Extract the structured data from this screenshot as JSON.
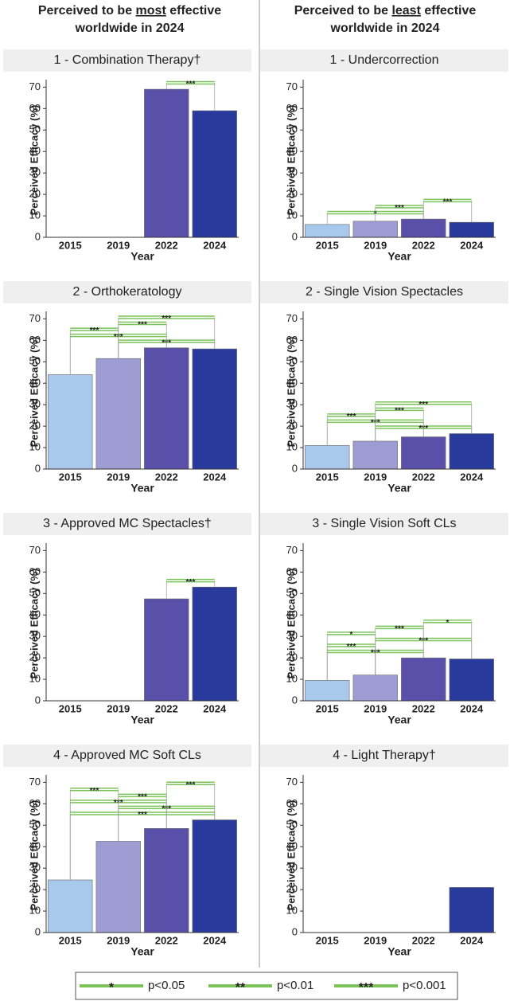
{
  "headers": [
    {
      "before": "Perceived to be ",
      "emphasis": "most",
      "after": " effective",
      "line2": "worldwide in 2024"
    },
    {
      "before": "Perceived to be ",
      "emphasis": "least",
      "after": " effective",
      "line2": "worldwide in 2024"
    }
  ],
  "chart_data": [
    {
      "type": "bar",
      "title": "1 - Combination Therapy†",
      "xlabel": "Year",
      "ylabel": "Perceived Efficacy (%)",
      "categories": [
        "2015",
        "2019",
        "2022",
        "2024"
      ],
      "values": [
        null,
        null,
        69,
        59
      ],
      "colors": [
        "#a9c9ec",
        "#9d9dd3",
        "#5b50a9",
        "#283a9b"
      ],
      "ylim": [
        0,
        72
      ],
      "yticks": [
        0,
        10,
        20,
        30,
        40,
        50,
        60,
        70
      ],
      "significance": [
        {
          "pair": [
            "2022",
            "2024"
          ],
          "label": "***"
        }
      ]
    },
    {
      "type": "bar",
      "title": "1 - Undercorrection",
      "xlabel": "Year",
      "ylabel": "Perceived Efficacy (%)",
      "categories": [
        "2015",
        "2019",
        "2022",
        "2024"
      ],
      "values": [
        6,
        7.5,
        8.5,
        7
      ],
      "colors": [
        "#a9c9ec",
        "#9d9dd3",
        "#5b50a9",
        "#283a9b"
      ],
      "ylim": [
        0,
        72
      ],
      "yticks": [
        0,
        10,
        20,
        30,
        40,
        50,
        60,
        70
      ],
      "significance": [
        {
          "pair": [
            "2015",
            "2022"
          ],
          "label": "*"
        },
        {
          "pair": [
            "2019",
            "2022"
          ],
          "label": "***"
        },
        {
          "pair": [
            "2022",
            "2024"
          ],
          "label": "***"
        }
      ]
    },
    {
      "type": "bar",
      "title": "2 - Orthokeratology",
      "xlabel": "Year",
      "ylabel": "Perceived Efficacy (%)",
      "categories": [
        "2015",
        "2019",
        "2022",
        "2024"
      ],
      "values": [
        44,
        51.5,
        56.5,
        56
      ],
      "colors": [
        "#a9c9ec",
        "#9d9dd3",
        "#5b50a9",
        "#283a9b"
      ],
      "ylim": [
        0,
        72
      ],
      "yticks": [
        0,
        10,
        20,
        30,
        40,
        50,
        60,
        70
      ],
      "significance": [
        {
          "pair": [
            "2019",
            "2024"
          ],
          "label": "***"
        },
        {
          "pair": [
            "2015",
            "2022"
          ],
          "label": "***"
        },
        {
          "pair": [
            "2015",
            "2019"
          ],
          "label": "***"
        },
        {
          "pair": [
            "2019",
            "2022"
          ],
          "label": "***"
        },
        {
          "pair": [
            "2019",
            "2024"
          ],
          "label": "***"
        }
      ]
    },
    {
      "type": "bar",
      "title": "2 - Single Vision Spectacles",
      "xlabel": "Year",
      "ylabel": "Perceived Efficacy (%)",
      "categories": [
        "2015",
        "2019",
        "2022",
        "2024"
      ],
      "values": [
        11,
        13,
        15,
        16.5
      ],
      "colors": [
        "#a9c9ec",
        "#9d9dd3",
        "#5b50a9",
        "#283a9b"
      ],
      "ylim": [
        0,
        72
      ],
      "yticks": [
        0,
        10,
        20,
        30,
        40,
        50,
        60,
        70
      ],
      "significance": [
        {
          "pair": [
            "2019",
            "2024"
          ],
          "label": "***"
        },
        {
          "pair": [
            "2015",
            "2022"
          ],
          "label": "***"
        },
        {
          "pair": [
            "2015",
            "2019"
          ],
          "label": "***"
        },
        {
          "pair": [
            "2019",
            "2022"
          ],
          "label": "***"
        },
        {
          "pair": [
            "2019",
            "2024"
          ],
          "label": "***"
        }
      ]
    },
    {
      "type": "bar",
      "title": "3 - Approved MC Spectacles†",
      "xlabel": "Year",
      "ylabel": "Perceived Efficacy (%)",
      "categories": [
        "2015",
        "2019",
        "2022",
        "2024"
      ],
      "values": [
        null,
        null,
        47.5,
        53
      ],
      "colors": [
        "#a9c9ec",
        "#9d9dd3",
        "#5b50a9",
        "#283a9b"
      ],
      "ylim": [
        0,
        72
      ],
      "yticks": [
        0,
        10,
        20,
        30,
        40,
        50,
        60,
        70
      ],
      "significance": [
        {
          "pair": [
            "2022",
            "2024"
          ],
          "label": "***"
        }
      ]
    },
    {
      "type": "bar",
      "title": "3 - Single Vision Soft CLs",
      "xlabel": "Year",
      "ylabel": "Perceived Efficacy (%)",
      "categories": [
        "2015",
        "2019",
        "2022",
        "2024"
      ],
      "values": [
        9.5,
        12,
        20,
        19.5
      ],
      "colors": [
        "#a9c9ec",
        "#9d9dd3",
        "#5b50a9",
        "#283a9b"
      ],
      "ylim": [
        0,
        72
      ],
      "yticks": [
        0,
        10,
        20,
        30,
        40,
        50,
        60,
        70
      ],
      "significance": [
        {
          "pair": [
            "2015",
            "2022"
          ],
          "label": "***"
        },
        {
          "pair": [
            "2015",
            "2019"
          ],
          "label": "***"
        },
        {
          "pair": [
            "2019",
            "2024"
          ],
          "label": "***"
        },
        {
          "pair": [
            "2015",
            "2019"
          ],
          "label": "*"
        },
        {
          "pair": [
            "2019",
            "2022"
          ],
          "label": "***"
        },
        {
          "pair": [
            "2022",
            "2024"
          ],
          "label": "*"
        }
      ]
    },
    {
      "type": "bar",
      "title": "4 - Approved MC Soft CLs",
      "xlabel": "Year",
      "ylabel": "Perceived Efficacy (%)",
      "categories": [
        "2015",
        "2019",
        "2022",
        "2024"
      ],
      "values": [
        24.5,
        42.5,
        48.5,
        52.5
      ],
      "colors": [
        "#a9c9ec",
        "#9d9dd3",
        "#5b50a9",
        "#283a9b"
      ],
      "ylim": [
        0,
        72
      ],
      "yticks": [
        0,
        10,
        20,
        30,
        40,
        50,
        60,
        70
      ],
      "significance": [
        {
          "pair": [
            "2015",
            "2024"
          ],
          "label": "***"
        },
        {
          "pair": [
            "2019",
            "2024"
          ],
          "label": "***"
        },
        {
          "pair": [
            "2015",
            "2022"
          ],
          "label": "***"
        },
        {
          "pair": [
            "2019",
            "2022"
          ],
          "label": "***"
        },
        {
          "pair": [
            "2015",
            "2019"
          ],
          "label": "***"
        },
        {
          "pair": [
            "2022",
            "2024"
          ],
          "label": "***"
        }
      ]
    },
    {
      "type": "bar",
      "title": "4 - Light Therapy†",
      "xlabel": "Year",
      "ylabel": "Perceived Efficacy (%)",
      "categories": [
        "2015",
        "2019",
        "2022",
        "2024"
      ],
      "values": [
        null,
        null,
        null,
        21
      ],
      "colors": [
        "#a9c9ec",
        "#9d9dd3",
        "#5b50a9",
        "#283a9b"
      ],
      "ylim": [
        0,
        72
      ],
      "yticks": [
        0,
        10,
        20,
        30,
        40,
        50,
        60,
        70
      ],
      "significance": []
    }
  ],
  "legend": [
    {
      "symbol": "*",
      "label": "p<0.05"
    },
    {
      "symbol": "**",
      "label": "p<0.01"
    },
    {
      "symbol": "***",
      "label": "p<0.001"
    }
  ]
}
